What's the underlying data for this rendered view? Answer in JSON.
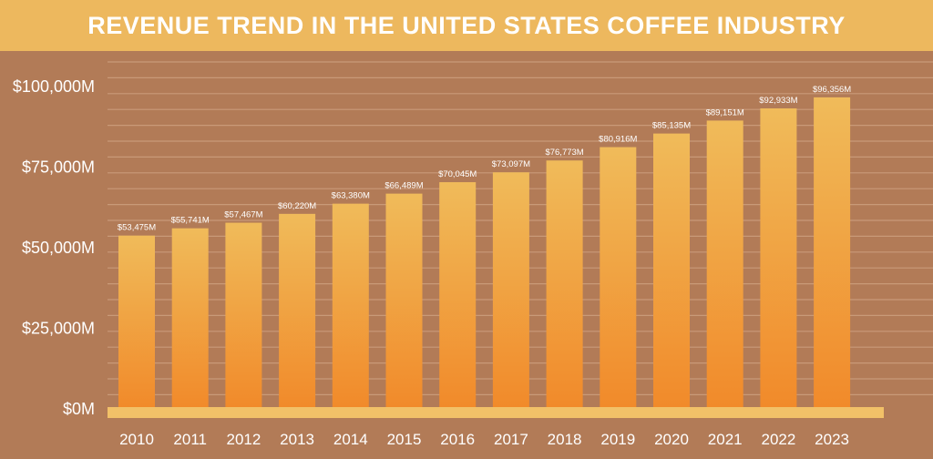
{
  "chart_data": {
    "type": "bar",
    "title": "REVENUE TREND IN THE UNITED STATES COFFEE INDUSTRY",
    "xlabel": "",
    "ylabel": "",
    "ylim": [
      0,
      100000
    ],
    "yticks": [
      0,
      25000,
      50000,
      75000,
      100000
    ],
    "ytick_labels": [
      "$0M",
      "$25,000M",
      "$50,000M",
      "$75,000M",
      "$100,000M"
    ],
    "categories": [
      "2010",
      "2011",
      "2012",
      "2013",
      "2014",
      "2015",
      "2016",
      "2017",
      "2018",
      "2019",
      "2020",
      "2021",
      "2022",
      "2023"
    ],
    "values": [
      53475,
      55741,
      57467,
      60220,
      63380,
      66489,
      70045,
      73097,
      76773,
      80916,
      85135,
      89151,
      92933,
      96356
    ],
    "data_labels": [
      "$53,475M",
      "$55,741M",
      "$57,467M",
      "$60,220M",
      "$63,380M",
      "$66,489M",
      "$70,045M",
      "$73,097M",
      "$76,773M",
      "$80,916M",
      "$85,135M",
      "$89,151M",
      "$92,933M",
      "$96,356M"
    ],
    "grid": true,
    "colors": {
      "bar_top": "#f0bb5a",
      "bar_bottom": "#f18a2a",
      "background": "#b27b57",
      "band": "#edb85e",
      "axis": "#f2c168"
    }
  }
}
